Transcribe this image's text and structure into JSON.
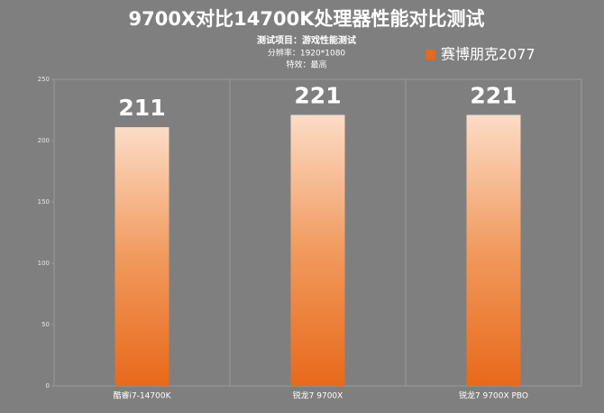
{
  "chart_data": {
    "type": "bar",
    "title": "9700X对比14700K处理器性能对比测试",
    "subtitle": [
      "测试项目：游戏性能测试",
      "分辨率：1920*1080",
      "特效：最高"
    ],
    "categories": [
      "酷睿i7-14700K",
      "锐龙7 9700X",
      "锐龙7 9700X PBO"
    ],
    "series": [
      {
        "name": "赛博朋克2077",
        "color": "#e8691a",
        "values": [
          211,
          221,
          221
        ]
      }
    ],
    "ylim": [
      0,
      250
    ],
    "yticks": [
      0,
      50,
      100,
      150,
      200,
      250
    ]
  }
}
